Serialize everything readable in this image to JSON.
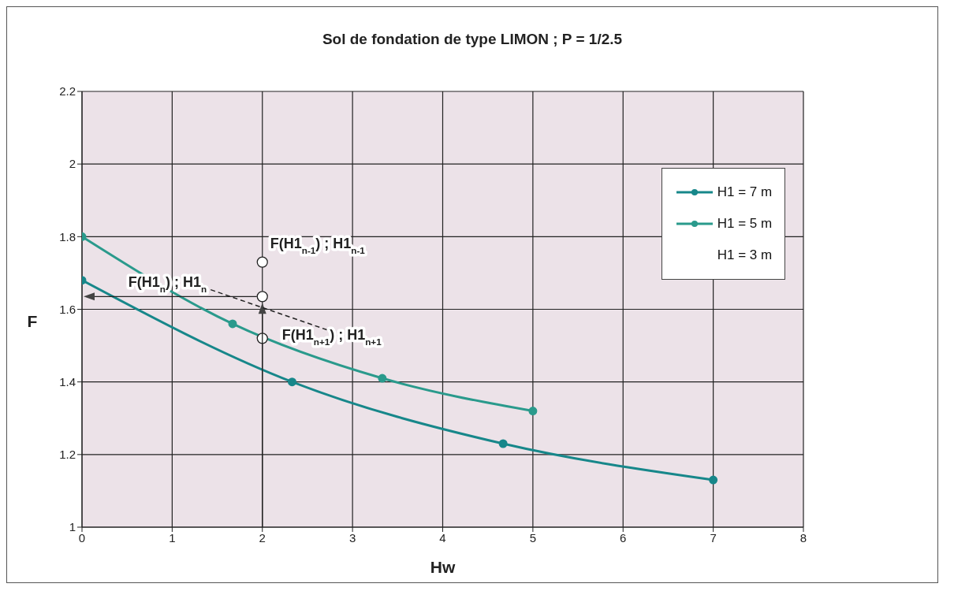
{
  "chart_data": {
    "type": "line",
    "title": "Sol de fondation de type LIMON ;  P = 1/2.5",
    "xlabel": "Hw",
    "ylabel": "F",
    "xlim": [
      0,
      8
    ],
    "xticks": [
      0,
      1,
      2,
      3,
      4,
      5,
      6,
      7,
      8
    ],
    "ylim": [
      1,
      2.2
    ],
    "yticks": [
      1,
      1.2,
      1.4,
      1.6,
      1.8,
      2,
      2.2
    ],
    "grid": true,
    "legend": "top right",
    "marker": "circle",
    "line_style": "solid",
    "series": [
      {
        "name": "H1 = 7 m",
        "color": "#17878a",
        "x": [
          0,
          2.33,
          4.67,
          7
        ],
        "values": [
          1.68,
          1.4,
          1.23,
          1.13
        ]
      },
      {
        "name": "H1 = 5 m",
        "color": "#2a9a8c",
        "x": [
          0,
          1.67,
          3.33,
          5
        ],
        "values": [
          1.8,
          1.56,
          1.41,
          1.32
        ]
      },
      {
        "type": "scatter",
        "color": "#ffffff",
        "x": [
          2,
          2,
          2
        ],
        "values": [
          1.73,
          1.635,
          1.52
        ]
      }
    ],
    "annotations": [
      "H1 = 3 m",
      "F(H1$_{n-1}$) ; H1$_{n-1}$",
      "F(H1$_{n}$) ; H1$_{n}$",
      "F(H1$_{n+1}$) ; H1$_{n+1}$"
    ]
  }
}
